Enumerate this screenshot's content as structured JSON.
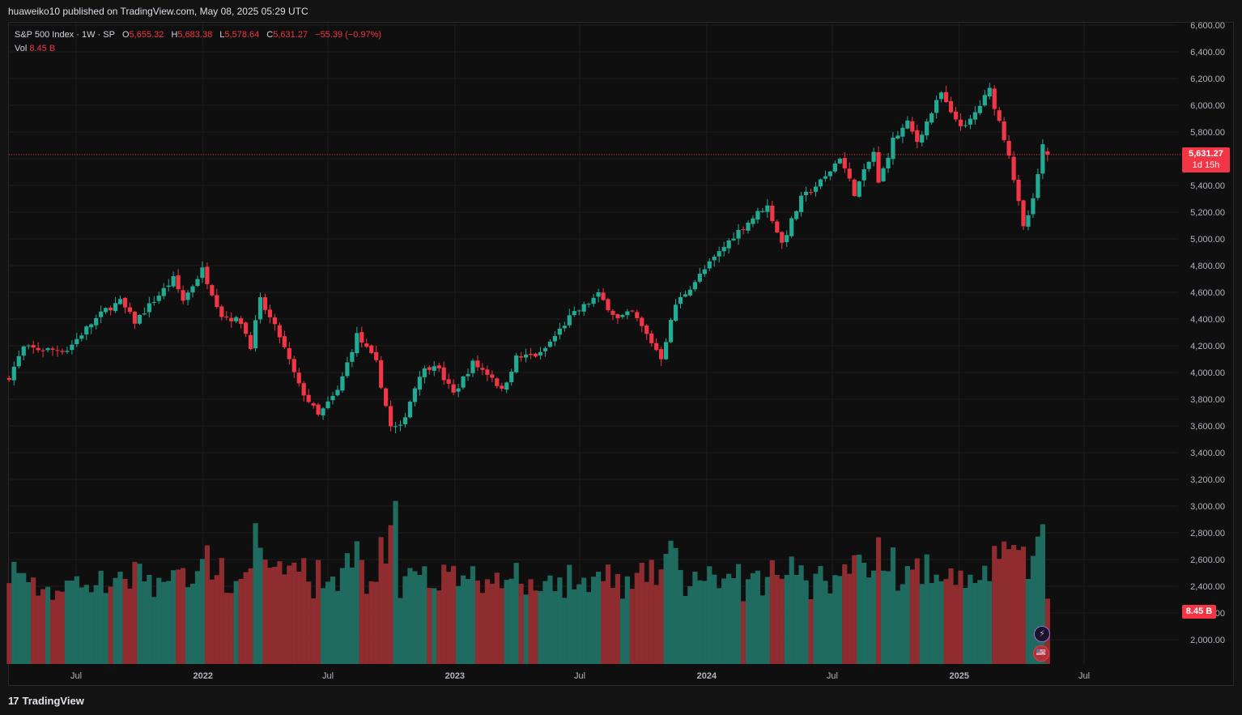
{
  "header": {
    "published": "huaweiko10 published on TradingView.com, May 08, 2025 05:29 UTC"
  },
  "legend": {
    "symbol": "S&P 500 Index · 1W · SP",
    "o_label": "O",
    "o": "5,655.32",
    "h_label": "H",
    "h": "5,683.38",
    "l_label": "L",
    "l": "5,578.64",
    "c_label": "C",
    "c": "5,631.27",
    "change": "−55.39 (−0.97%)",
    "vol_label": "Vol",
    "vol": "8.45 B"
  },
  "price_badge": {
    "price": "5,631.27",
    "countdown": "1d 15h"
  },
  "vol_badge": "8.45 B",
  "footer": {
    "brand_logo": "17",
    "brand": "TradingView"
  },
  "colors": {
    "up": "#22ab94",
    "down": "#f23645",
    "up_vol": "#1f6b5f",
    "down_vol": "#8e2c2f",
    "bg": "#0f0f0f",
    "grid": "#1e1e1e"
  },
  "icons": [
    "lightning-icon",
    "us-flag-icon"
  ],
  "chart_data": {
    "type": "candlestick",
    "title": "S&P 500 Index",
    "interval": "1W",
    "last_price": 5631.27,
    "y_ticks": [
      "6,600.00",
      "6,400.00",
      "6,200.00",
      "6,000.00",
      "5,800.00",
      "5,600.00",
      "5,400.00",
      "5,200.00",
      "5,000.00",
      "4,800.00",
      "4,600.00",
      "4,400.00",
      "4,200.00",
      "4,000.00",
      "3,800.00",
      "3,600.00",
      "3,400.00",
      "3,200.00",
      "3,000.00",
      "2,800.00",
      "2,600.00",
      "2,400.00",
      "2,200.00",
      "2,000.00"
    ],
    "x_ticks": [
      "Jul",
      "2022",
      "Jul",
      "2023",
      "Jul",
      "2024",
      "Jul",
      "2025",
      "Jul"
    ],
    "ylim": [
      1800,
      6600
    ],
    "close_waypoints": [
      [
        "2021-03-26",
        3970
      ],
      [
        "2021-04-16",
        4185
      ],
      [
        "2021-05-14",
        4170
      ],
      [
        "2021-06-18",
        4170
      ],
      [
        "2021-07-16",
        4330
      ],
      [
        "2021-08-13",
        4470
      ],
      [
        "2021-09-03",
        4530
      ],
      [
        "2021-09-24",
        4380
      ],
      [
        "2021-10-22",
        4540
      ],
      [
        "2021-11-19",
        4700
      ],
      [
        "2021-12-03",
        4540
      ],
      [
        "2021-12-31",
        4770
      ],
      [
        "2022-01-28",
        4430
      ],
      [
        "2022-02-25",
        4380
      ],
      [
        "2022-03-11",
        4200
      ],
      [
        "2022-03-25",
        4540
      ],
      [
        "2022-04-22",
        4270
      ],
      [
        "2022-05-20",
        3900
      ],
      [
        "2022-06-17",
        3675
      ],
      [
        "2022-07-15",
        3860
      ],
      [
        "2022-08-12",
        4280
      ],
      [
        "2022-09-09",
        4070
      ],
      [
        "2022-09-30",
        3590
      ],
      [
        "2022-10-14",
        3585
      ],
      [
        "2022-11-11",
        3990
      ],
      [
        "2022-12-02",
        4070
      ],
      [
        "2022-12-30",
        3840
      ],
      [
        "2023-01-27",
        4070
      ],
      [
        "2023-02-24",
        3970
      ],
      [
        "2023-03-10",
        3860
      ],
      [
        "2023-03-31",
        4110
      ],
      [
        "2023-05-05",
        4135
      ],
      [
        "2023-06-16",
        4410
      ],
      [
        "2023-07-28",
        4580
      ],
      [
        "2023-08-25",
        4400
      ],
      [
        "2023-09-15",
        4450
      ],
      [
        "2023-10-27",
        4115
      ],
      [
        "2023-11-17",
        4510
      ],
      [
        "2023-12-29",
        4770
      ],
      [
        "2024-02-09",
        5025
      ],
      [
        "2024-03-28",
        5255
      ],
      [
        "2024-04-19",
        4965
      ],
      [
        "2024-05-17",
        5300
      ],
      [
        "2024-06-21",
        5460
      ],
      [
        "2024-07-12",
        5615
      ],
      [
        "2024-08-02",
        5345
      ],
      [
        "2024-08-30",
        5650
      ],
      [
        "2024-09-06",
        5410
      ],
      [
        "2024-09-27",
        5740
      ],
      [
        "2024-10-18",
        5865
      ],
      [
        "2024-11-01",
        5730
      ],
      [
        "2024-12-06",
        6090
      ],
      [
        "2024-12-20",
        5930
      ],
      [
        "2025-01-10",
        5830
      ],
      [
        "2025-02-14",
        6115
      ],
      [
        "2025-03-14",
        5640
      ],
      [
        "2025-04-04",
        5075
      ],
      [
        "2025-04-18",
        5280
      ],
      [
        "2025-05-02",
        5686
      ],
      [
        "2025-05-09",
        5631.27
      ]
    ],
    "volume_range_billions": [
      7,
      17
    ]
  }
}
